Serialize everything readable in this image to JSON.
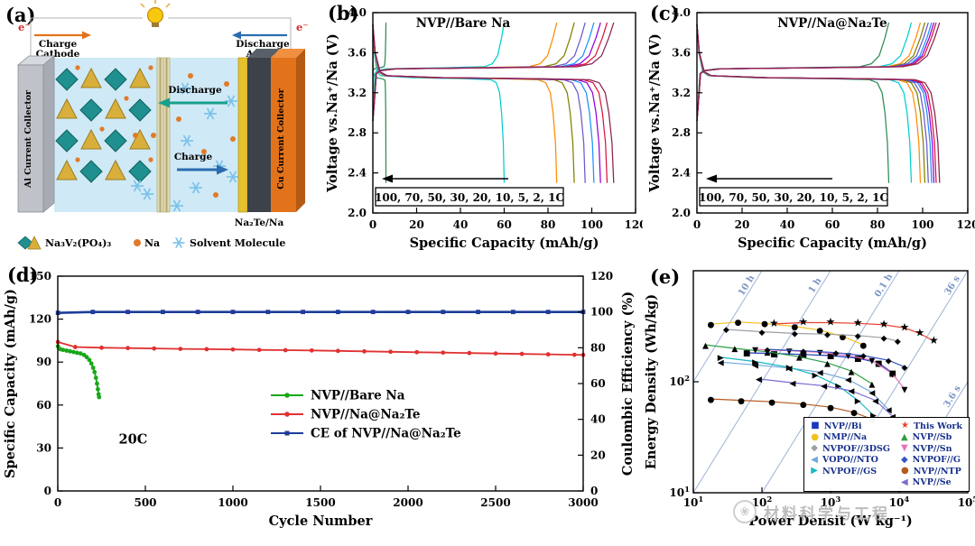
{
  "figure": {
    "panel_labels": {
      "a": "(a)",
      "b": "(b)",
      "c": "(c)",
      "d": "(d)",
      "e": "(e)"
    },
    "watermark": {
      "logo_glyph": "❀",
      "text": "材料科学与工程"
    }
  },
  "panel_a": {
    "electron": "e⁻",
    "charge": "Charge",
    "cathode": "Cathode",
    "discharge": "Discharge",
    "anode": "Anode",
    "al_collector": "Al Current Collector",
    "cu_collector": "Cu Current Collector",
    "inner_discharge": "Discharge",
    "inner_charge": "Charge",
    "legend_nvp": "Na₃V₂(PO₄)₃",
    "legend_na": "Na",
    "legend_solvent": "Solvent Molecule",
    "anode_label": "Na₂Te/Na"
  },
  "chart_data": [
    {
      "id": "b",
      "type": "line",
      "subtype": "rate_profiles",
      "title": "NVP//Bare Na",
      "xlabel": "Specific Capacity (mAh/g)",
      "ylabel": "Voltage vs.Na⁺/Na (V)",
      "xlim": [
        0,
        120
      ],
      "ylim": [
        2.0,
        4.0
      ],
      "xticks": [
        0,
        20,
        40,
        60,
        80,
        100,
        120
      ],
      "yticks": [
        2.0,
        2.4,
        2.8,
        3.2,
        3.6,
        4.0
      ],
      "rate_label": "100, 70, 50, 30, 20, 10, 5, 2, 1C",
      "charge_plateau": 3.45,
      "discharge_plateau": 3.35,
      "vmax": 3.9,
      "vmin": 2.3,
      "series": [
        {
          "rate": "100C",
          "capacity": 6,
          "color": "#2e8b57"
        },
        {
          "rate": "70C",
          "capacity": 60,
          "color": "#00ced1"
        },
        {
          "rate": "50C",
          "capacity": 84,
          "color": "#ff8c00"
        },
        {
          "rate": "30C",
          "capacity": 92,
          "color": "#808000"
        },
        {
          "rate": "20C",
          "capacity": 97,
          "color": "#6a5acd"
        },
        {
          "rate": "10C",
          "capacity": 101,
          "color": "#1e90ff"
        },
        {
          "rate": "5C",
          "capacity": 104,
          "color": "#9400d3"
        },
        {
          "rate": "2C",
          "capacity": 107,
          "color": "#dc143c"
        },
        {
          "rate": "1C",
          "capacity": 110,
          "color": "#8b2252"
        }
      ]
    },
    {
      "id": "c",
      "type": "line",
      "subtype": "rate_profiles",
      "title": "NVP//Na@Na₂Te",
      "xlabel": "Specific Capacity (mAh/g)",
      "ylabel": "Voltage vs.Na⁺/Na (V)",
      "xlim": [
        0,
        120
      ],
      "ylim": [
        2.0,
        4.0
      ],
      "xticks": [
        0,
        20,
        40,
        60,
        80,
        100,
        120
      ],
      "yticks": [
        2.0,
        2.4,
        2.8,
        3.2,
        3.6,
        4.0
      ],
      "rate_label": "100, 70, 50, 30, 20, 10, 5, 2, 1C",
      "charge_plateau": 3.45,
      "discharge_plateau": 3.35,
      "vmax": 3.9,
      "vmin": 2.3,
      "series": [
        {
          "rate": "100C",
          "capacity": 85,
          "color": "#2e8b57"
        },
        {
          "rate": "70C",
          "capacity": 95,
          "color": "#00ced1"
        },
        {
          "rate": "50C",
          "capacity": 99,
          "color": "#ff8c00"
        },
        {
          "rate": "30C",
          "capacity": 101,
          "color": "#808000"
        },
        {
          "rate": "20C",
          "capacity": 102.5,
          "color": "#6a5acd"
        },
        {
          "rate": "10C",
          "capacity": 104,
          "color": "#1e90ff"
        },
        {
          "rate": "5C",
          "capacity": 105,
          "color": "#9400d3"
        },
        {
          "rate": "2C",
          "capacity": 106,
          "color": "#dc143c"
        },
        {
          "rate": "1C",
          "capacity": 107.5,
          "color": "#8b2252"
        }
      ]
    },
    {
      "id": "d",
      "type": "line",
      "subtype": "cycling_dual_axis",
      "xlabel": "Cycle Number",
      "ylabel_left": "Specific Capacity (mAh/g)",
      "ylabel_right": "Coulombic Efficiency (%)",
      "annotation": "20C",
      "xlim": [
        0,
        3000
      ],
      "ylim_left": [
        0,
        150
      ],
      "ylim_right": [
        0,
        120
      ],
      "xticks": [
        0,
        500,
        1000,
        1500,
        2000,
        2500,
        3000
      ],
      "yticks_left": [
        0,
        30,
        60,
        90,
        120,
        150
      ],
      "yticks_right": [
        0,
        20,
        40,
        60,
        80,
        100,
        120
      ],
      "series": [
        {
          "name": "NVP//Bare Na",
          "color": "#18a818",
          "axis": "left",
          "marker": "circle",
          "points": [
            [
              1,
              101
            ],
            [
              15,
              99
            ],
            [
              30,
              98.5
            ],
            [
              50,
              98
            ],
            [
              70,
              97.5
            ],
            [
              90,
              97
            ],
            [
              110,
              96.5
            ],
            [
              130,
              96
            ],
            [
              150,
              95
            ],
            [
              165,
              93.5
            ],
            [
              180,
              91.5
            ],
            [
              192,
              89
            ],
            [
              202,
              86
            ],
            [
              210,
              83
            ],
            [
              218,
              79
            ],
            [
              224,
              75
            ],
            [
              229,
              71
            ],
            [
              233,
              67.5
            ],
            [
              236,
              65.5
            ]
          ]
        },
        {
          "name": "NVP//Na@Na₂Te",
          "color": "#e03131",
          "axis": "left",
          "marker": "circle",
          "points": [
            [
              1,
              104
            ],
            [
              100,
              100.5
            ],
            [
              250,
              100
            ],
            [
              400,
              99.8
            ],
            [
              550,
              99.5
            ],
            [
              700,
              99.2
            ],
            [
              850,
              99
            ],
            [
              1000,
              98.8
            ],
            [
              1150,
              98.5
            ],
            [
              1300,
              98.3
            ],
            [
              1450,
              98.1
            ],
            [
              1600,
              97.8
            ],
            [
              1750,
              97.5
            ],
            [
              1900,
              97.2
            ],
            [
              2050,
              96.9
            ],
            [
              2200,
              96.6
            ],
            [
              2350,
              96.3
            ],
            [
              2500,
              96
            ],
            [
              2650,
              95.7
            ],
            [
              2800,
              95.4
            ],
            [
              2950,
              95.1
            ],
            [
              3000,
              95
            ]
          ]
        },
        {
          "name": "CE of NVP//Na@Na₂Te",
          "color": "#1f3d99",
          "axis": "right",
          "marker": "square",
          "points": [
            [
              1,
              99.5
            ],
            [
              200,
              100
            ],
            [
              400,
              100
            ],
            [
              600,
              100
            ],
            [
              800,
              100
            ],
            [
              1000,
              100
            ],
            [
              1200,
              100
            ],
            [
              1400,
              100
            ],
            [
              1600,
              100
            ],
            [
              1800,
              100
            ],
            [
              2000,
              100
            ],
            [
              2200,
              100
            ],
            [
              2400,
              100
            ],
            [
              2600,
              100
            ],
            [
              2800,
              100
            ],
            [
              3000,
              100
            ]
          ]
        }
      ]
    },
    {
      "id": "e",
      "type": "scatter",
      "subtype": "ragone_loglog",
      "xlabel": "Power Densit (W kg⁻¹)",
      "ylabel": "Energy Density (Wh/kg)",
      "xlim": [
        10,
        100000
      ],
      "ylim": [
        10,
        1000
      ],
      "time_lines": [
        {
          "label": "10 h",
          "hours": 10
        },
        {
          "label": "1 h",
          "hours": 1
        },
        {
          "label": "0.1 h",
          "hours": 0.1
        },
        {
          "label": "36 s",
          "hours": 0.01
        },
        {
          "label": "3.6 s",
          "hours": 0.001
        }
      ],
      "legend_columns": [
        [
          0,
          1,
          2,
          3,
          4
        ],
        [
          5,
          6,
          7,
          8,
          9,
          10
        ]
      ],
      "series": [
        {
          "name": "NVP//Bi",
          "color": "#1c39bb",
          "glyph": "■",
          "points": [
            [
              60,
              182
            ],
            [
              150,
              180
            ],
            [
              400,
              176
            ],
            [
              1000,
              172
            ],
            [
              2500,
              163
            ],
            [
              5000,
              148
            ],
            [
              8000,
              120
            ]
          ]
        },
        {
          "name": "NMP//Na",
          "color": "#f2c11f",
          "glyph": "●",
          "points": [
            [
              18,
              330
            ],
            [
              45,
              345
            ],
            [
              110,
              335
            ],
            [
              300,
              315
            ],
            [
              700,
              292
            ],
            [
              1500,
              256
            ],
            [
              3000,
              215
            ]
          ]
        },
        {
          "name": "NVPOF//3DSG",
          "color": "#9aa0a6",
          "glyph": "◆",
          "points": [
            [
              30,
              296
            ],
            [
              100,
              282
            ],
            [
              300,
              273
            ],
            [
              900,
              268
            ],
            [
              2500,
              261
            ],
            [
              6000,
              249
            ],
            [
              9500,
              232
            ]
          ]
        },
        {
          "name": "VOPO//NTO",
          "color": "#6fa8dc",
          "glyph": "◀",
          "points": [
            [
              25,
              150
            ],
            [
              80,
              142
            ],
            [
              250,
              133
            ],
            [
              700,
              122
            ],
            [
              1800,
              105
            ],
            [
              4000,
              80
            ],
            [
              7000,
              56
            ]
          ]
        },
        {
          "name": "NVPOF//GS",
          "color": "#19b8c4",
          "glyph": "▶",
          "points": [
            [
              25,
              166
            ],
            [
              80,
              152
            ],
            [
              250,
              135
            ],
            [
              600,
              115
            ],
            [
              1300,
              92
            ],
            [
              2500,
              68
            ],
            [
              4200,
              50
            ]
          ]
        },
        {
          "name": "This Work",
          "color": "#e8402c",
          "glyph": "★",
          "points": [
            [
              150,
              332
            ],
            [
              400,
              341
            ],
            [
              1000,
              341
            ],
            [
              2500,
              336
            ],
            [
              6000,
              326
            ],
            [
              12000,
              306
            ],
            [
              20000,
              272
            ],
            [
              32000,
              232
            ]
          ]
        },
        {
          "name": "NVP//Sb",
          "color": "#2f9e44",
          "glyph": "▲",
          "points": [
            [
              15,
              215
            ],
            [
              40,
              200
            ],
            [
              120,
              186
            ],
            [
              350,
              168
            ],
            [
              900,
              148
            ],
            [
              2000,
              125
            ],
            [
              4000,
              96
            ]
          ]
        },
        {
          "name": "NVP//Sn",
          "color": "#e574bc",
          "glyph": "▼",
          "points": [
            [
              80,
              196
            ],
            [
              250,
              190
            ],
            [
              700,
              184
            ],
            [
              1800,
              172
            ],
            [
              4000,
              156
            ],
            [
              8000,
              118
            ],
            [
              12000,
              86
            ]
          ]
        },
        {
          "name": "NVPOF//G",
          "color": "#3558c0",
          "glyph": "◆",
          "points": [
            [
              120,
              196
            ],
            [
              400,
              190
            ],
            [
              1200,
              183
            ],
            [
              3000,
              172
            ],
            [
              7000,
              156
            ],
            [
              12000,
              136
            ]
          ]
        },
        {
          "name": "NVP//NTP",
          "color": "#b4591f",
          "glyph": "●",
          "points": [
            [
              18,
              70
            ],
            [
              50,
              68
            ],
            [
              140,
              66
            ],
            [
              400,
              63
            ],
            [
              1000,
              59
            ],
            [
              2200,
              53
            ],
            [
              4000,
              46
            ]
          ]
        },
        {
          "name": "NVP//Se",
          "color": "#7d6bd0",
          "glyph": "◀",
          "points": [
            [
              90,
              106
            ],
            [
              280,
              98
            ],
            [
              800,
              92
            ],
            [
              2000,
              83
            ],
            [
              4500,
              68
            ],
            [
              8000,
              49
            ]
          ]
        }
      ]
    }
  ]
}
